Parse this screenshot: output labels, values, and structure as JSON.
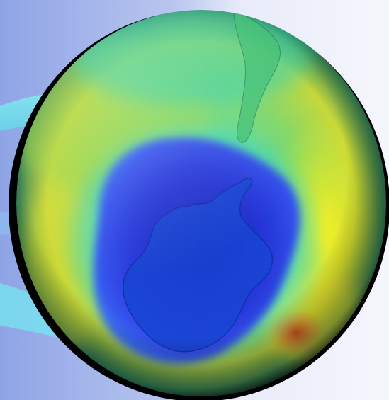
{
  "image": {
    "subject": "globe-ozone-map",
    "colors": {
      "background_left": "#8fa6e6",
      "background_right": "#f4f6fc",
      "ring": "#7fe3ef",
      "hole_dark": "#1d27c8",
      "hole_mid": "#3246e6",
      "ozone_high": "#ffee22",
      "ozone_peak": "#f06a22",
      "land": "#153fd0",
      "rim": "#000000"
    }
  }
}
